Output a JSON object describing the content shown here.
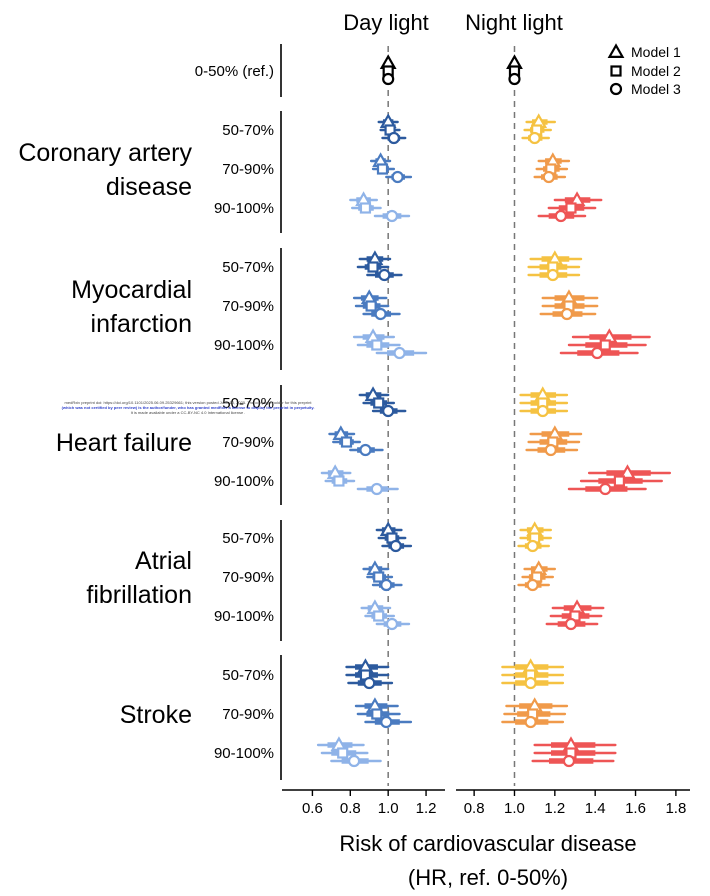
{
  "chart_data": {
    "type": "forest",
    "panels": [
      {
        "title": "Day light",
        "xlim": [
          0.45,
          1.3
        ],
        "xticks": [
          0.6,
          0.8,
          1.0,
          1.2
        ],
        "xtick_labels": [
          "0.6",
          "0.8",
          "1.0",
          "1.2"
        ],
        "reference": 1.0
      },
      {
        "title": "Night light",
        "xlim": [
          0.72,
          1.87
        ],
        "xticks": [
          0.8,
          1.0,
          1.2,
          1.4,
          1.6,
          1.8
        ],
        "xtick_labels": [
          "0.8",
          "1.0",
          "1.2",
          "1.4",
          "1.6",
          "1.8"
        ],
        "reference": 1.0
      }
    ],
    "xlabel_line1": "Risk of cardiovascular disease",
    "xlabel_line2": "(HR, ref. 0-50%)",
    "reference_label": "0-50% (ref.)",
    "legend": [
      {
        "shape": "triangle",
        "label": "Model 1"
      },
      {
        "shape": "square",
        "label": "Model 2"
      },
      {
        "shape": "circle",
        "label": "Model 3"
      }
    ],
    "colors": {
      "day": {
        "50-70%": "#2c5a9e",
        "70-90%": "#4a7bc0",
        "90-100%": "#8fb3e8"
      },
      "night": {
        "50-70%": "#f5c242",
        "70-90%": "#f09a4a",
        "90-100%": "#ee5555"
      },
      "reference": "#000000"
    },
    "groups": [
      {
        "name": "Coronary artery disease",
        "name_lines": [
          "Coronary artery",
          "disease"
        ],
        "rows": [
          {
            "label": "50-70%",
            "day": [
              {
                "model": 1,
                "hr": 1.0,
                "lo": 0.95,
                "hi": 1.05
              },
              {
                "model": 2,
                "hr": 1.01,
                "lo": 0.96,
                "hi": 1.06
              },
              {
                "model": 3,
                "hr": 1.03,
                "lo": 0.97,
                "hi": 1.09
              }
            ],
            "night": [
              {
                "model": 1,
                "hr": 1.12,
                "lo": 1.06,
                "hi": 1.2
              },
              {
                "model": 2,
                "hr": 1.11,
                "lo": 1.05,
                "hi": 1.18
              },
              {
                "model": 3,
                "hr": 1.1,
                "lo": 1.04,
                "hi": 1.17
              }
            ]
          },
          {
            "label": "70-90%",
            "day": [
              {
                "model": 1,
                "hr": 0.96,
                "lo": 0.91,
                "hi": 1.01
              },
              {
                "model": 2,
                "hr": 0.97,
                "lo": 0.92,
                "hi": 1.03
              },
              {
                "model": 3,
                "hr": 1.05,
                "lo": 0.99,
                "hi": 1.12
              }
            ],
            "night": [
              {
                "model": 1,
                "hr": 1.19,
                "lo": 1.12,
                "hi": 1.27
              },
              {
                "model": 2,
                "hr": 1.18,
                "lo": 1.11,
                "hi": 1.26
              },
              {
                "model": 3,
                "hr": 1.17,
                "lo": 1.1,
                "hi": 1.25
              }
            ]
          },
          {
            "label": "90-100%",
            "day": [
              {
                "model": 1,
                "hr": 0.87,
                "lo": 0.8,
                "hi": 0.94
              },
              {
                "model": 2,
                "hr": 0.88,
                "lo": 0.81,
                "hi": 0.96
              },
              {
                "model": 3,
                "hr": 1.02,
                "lo": 0.93,
                "hi": 1.11
              }
            ],
            "night": [
              {
                "model": 1,
                "hr": 1.31,
                "lo": 1.2,
                "hi": 1.43
              },
              {
                "model": 2,
                "hr": 1.28,
                "lo": 1.17,
                "hi": 1.4
              },
              {
                "model": 3,
                "hr": 1.23,
                "lo": 1.12,
                "hi": 1.35
              }
            ]
          }
        ]
      },
      {
        "name": "Myocardial infarction",
        "name_lines": [
          "Myocardial",
          "infarction"
        ],
        "rows": [
          {
            "label": "50-70%",
            "day": [
              {
                "model": 1,
                "hr": 0.93,
                "lo": 0.85,
                "hi": 1.01
              },
              {
                "model": 2,
                "hr": 0.92,
                "lo": 0.84,
                "hi": 1.0
              },
              {
                "model": 3,
                "hr": 0.98,
                "lo": 0.89,
                "hi": 1.07
              }
            ],
            "night": [
              {
                "model": 1,
                "hr": 1.2,
                "lo": 1.08,
                "hi": 1.33
              },
              {
                "model": 2,
                "hr": 1.19,
                "lo": 1.07,
                "hi": 1.32
              },
              {
                "model": 3,
                "hr": 1.19,
                "lo": 1.07,
                "hi": 1.32
              }
            ]
          },
          {
            "label": "70-90%",
            "day": [
              {
                "model": 1,
                "hr": 0.9,
                "lo": 0.82,
                "hi": 0.99
              },
              {
                "model": 2,
                "hr": 0.91,
                "lo": 0.83,
                "hi": 1.0
              },
              {
                "model": 3,
                "hr": 0.96,
                "lo": 0.87,
                "hi": 1.06
              }
            ],
            "night": [
              {
                "model": 1,
                "hr": 1.27,
                "lo": 1.14,
                "hi": 1.41
              },
              {
                "model": 2,
                "hr": 1.27,
                "lo": 1.14,
                "hi": 1.41
              },
              {
                "model": 3,
                "hr": 1.26,
                "lo": 1.13,
                "hi": 1.4
              }
            ]
          },
          {
            "label": "90-100%",
            "day": [
              {
                "model": 1,
                "hr": 0.92,
                "lo": 0.82,
                "hi": 1.03
              },
              {
                "model": 2,
                "hr": 0.94,
                "lo": 0.84,
                "hi": 1.06
              },
              {
                "model": 3,
                "hr": 1.06,
                "lo": 0.94,
                "hi": 1.2
              }
            ],
            "night": [
              {
                "model": 1,
                "hr": 1.47,
                "lo": 1.29,
                "hi": 1.67
              },
              {
                "model": 2,
                "hr": 1.45,
                "lo": 1.27,
                "hi": 1.65
              },
              {
                "model": 3,
                "hr": 1.41,
                "lo": 1.23,
                "hi": 1.61
              }
            ]
          }
        ]
      },
      {
        "name": "Heart failure",
        "name_lines": [
          "Heart failure"
        ],
        "rows": [
          {
            "label": "50-70%",
            "day": [
              {
                "model": 1,
                "hr": 0.92,
                "lo": 0.85,
                "hi": 1.0
              },
              {
                "model": 2,
                "hr": 0.95,
                "lo": 0.87,
                "hi": 1.03
              },
              {
                "model": 3,
                "hr": 1.0,
                "lo": 0.92,
                "hi": 1.09
              }
            ],
            "night": [
              {
                "model": 1,
                "hr": 1.14,
                "lo": 1.03,
                "hi": 1.26
              },
              {
                "model": 2,
                "hr": 1.14,
                "lo": 1.03,
                "hi": 1.26
              },
              {
                "model": 3,
                "hr": 1.14,
                "lo": 1.03,
                "hi": 1.26
              }
            ]
          },
          {
            "label": "70-90%",
            "day": [
              {
                "model": 1,
                "hr": 0.75,
                "lo": 0.69,
                "hi": 0.82
              },
              {
                "model": 2,
                "hr": 0.78,
                "lo": 0.71,
                "hi": 0.85
              },
              {
                "model": 3,
                "hr": 0.88,
                "lo": 0.8,
                "hi": 0.97
              }
            ],
            "night": [
              {
                "model": 1,
                "hr": 1.2,
                "lo": 1.08,
                "hi": 1.33
              },
              {
                "model": 2,
                "hr": 1.19,
                "lo": 1.07,
                "hi": 1.32
              },
              {
                "model": 3,
                "hr": 1.18,
                "lo": 1.06,
                "hi": 1.31
              }
            ]
          },
          {
            "label": "90-100%",
            "day": [
              {
                "model": 1,
                "hr": 0.72,
                "lo": 0.65,
                "hi": 0.8
              },
              {
                "model": 2,
                "hr": 0.74,
                "lo": 0.67,
                "hi": 0.82
              },
              {
                "model": 3,
                "hr": 0.94,
                "lo": 0.84,
                "hi": 1.05
              }
            ],
            "night": [
              {
                "model": 1,
                "hr": 1.56,
                "lo": 1.37,
                "hi": 1.77
              },
              {
                "model": 2,
                "hr": 1.52,
                "lo": 1.33,
                "hi": 1.73
              },
              {
                "model": 3,
                "hr": 1.45,
                "lo": 1.27,
                "hi": 1.65
              }
            ]
          }
        ]
      },
      {
        "name": "Atrial fibrillation",
        "name_lines": [
          "Atrial",
          "fibrillation"
        ],
        "rows": [
          {
            "label": "50-70%",
            "day": [
              {
                "model": 1,
                "hr": 1.0,
                "lo": 0.94,
                "hi": 1.07
              },
              {
                "model": 2,
                "hr": 1.02,
                "lo": 0.95,
                "hi": 1.09
              },
              {
                "model": 3,
                "hr": 1.04,
                "lo": 0.97,
                "hi": 1.12
              }
            ],
            "night": [
              {
                "model": 1,
                "hr": 1.1,
                "lo": 1.03,
                "hi": 1.18
              },
              {
                "model": 2,
                "hr": 1.1,
                "lo": 1.03,
                "hi": 1.18
              },
              {
                "model": 3,
                "hr": 1.09,
                "lo": 1.02,
                "hi": 1.17
              }
            ]
          },
          {
            "label": "70-90%",
            "day": [
              {
                "model": 1,
                "hr": 0.93,
                "lo": 0.87,
                "hi": 1.0
              },
              {
                "model": 2,
                "hr": 0.95,
                "lo": 0.89,
                "hi": 1.02
              },
              {
                "model": 3,
                "hr": 0.99,
                "lo": 0.92,
                "hi": 1.07
              }
            ],
            "night": [
              {
                "model": 1,
                "hr": 1.12,
                "lo": 1.05,
                "hi": 1.2
              },
              {
                "model": 2,
                "hr": 1.11,
                "lo": 1.04,
                "hi": 1.19
              },
              {
                "model": 3,
                "hr": 1.09,
                "lo": 1.02,
                "hi": 1.17
              }
            ]
          },
          {
            "label": "90-100%",
            "day": [
              {
                "model": 1,
                "hr": 0.93,
                "lo": 0.86,
                "hi": 1.01
              },
              {
                "model": 2,
                "hr": 0.95,
                "lo": 0.88,
                "hi": 1.03
              },
              {
                "model": 3,
                "hr": 1.02,
                "lo": 0.94,
                "hi": 1.11
              }
            ],
            "night": [
              {
                "model": 1,
                "hr": 1.31,
                "lo": 1.19,
                "hi": 1.44
              },
              {
                "model": 2,
                "hr": 1.3,
                "lo": 1.18,
                "hi": 1.43
              },
              {
                "model": 3,
                "hr": 1.28,
                "lo": 1.16,
                "hi": 1.41
              }
            ]
          }
        ]
      },
      {
        "name": "Stroke",
        "name_lines": [
          "Stroke"
        ],
        "rows": [
          {
            "label": "50-70%",
            "day": [
              {
                "model": 1,
                "hr": 0.88,
                "lo": 0.78,
                "hi": 1.0
              },
              {
                "model": 2,
                "hr": 0.88,
                "lo": 0.78,
                "hi": 1.0
              },
              {
                "model": 3,
                "hr": 0.9,
                "lo": 0.79,
                "hi": 1.02
              }
            ],
            "night": [
              {
                "model": 1,
                "hr": 1.08,
                "lo": 0.94,
                "hi": 1.24
              },
              {
                "model": 2,
                "hr": 1.08,
                "lo": 0.94,
                "hi": 1.24
              },
              {
                "model": 3,
                "hr": 1.08,
                "lo": 0.94,
                "hi": 1.24
              }
            ]
          },
          {
            "label": "70-90%",
            "day": [
              {
                "model": 1,
                "hr": 0.93,
                "lo": 0.83,
                "hi": 1.05
              },
              {
                "model": 2,
                "hr": 0.94,
                "lo": 0.84,
                "hi": 1.06
              },
              {
                "model": 3,
                "hr": 0.99,
                "lo": 0.88,
                "hi": 1.12
              }
            ],
            "night": [
              {
                "model": 1,
                "hr": 1.1,
                "lo": 0.96,
                "hi": 1.26
              },
              {
                "model": 2,
                "hr": 1.09,
                "lo": 0.95,
                "hi": 1.25
              },
              {
                "model": 3,
                "hr": 1.08,
                "lo": 0.94,
                "hi": 1.24
              }
            ]
          },
          {
            "label": "90-100%",
            "day": [
              {
                "model": 1,
                "hr": 0.74,
                "lo": 0.63,
                "hi": 0.87
              },
              {
                "model": 2,
                "hr": 0.76,
                "lo": 0.65,
                "hi": 0.89
              },
              {
                "model": 3,
                "hr": 0.82,
                "lo": 0.7,
                "hi": 0.96
              }
            ],
            "night": [
              {
                "model": 1,
                "hr": 1.28,
                "lo": 1.1,
                "hi": 1.5
              },
              {
                "model": 2,
                "hr": 1.28,
                "lo": 1.1,
                "hi": 1.5
              },
              {
                "model": 3,
                "hr": 1.27,
                "lo": 1.09,
                "hi": 1.49
              }
            ]
          }
        ]
      }
    ]
  },
  "preprint_notice": {
    "line1": "medRxiv preprint doi: https://doi.org/10.1101/2025.06.09.25329661; this version posted June 10, 2025. The copyright holder for this preprint",
    "line2": "(which was not certified by peer review) is the author/funder, who has granted medRxiv a license to display the preprint in perpetuity.",
    "line3": "It is made available under a CC-BY-NC 4.0 International license ."
  }
}
